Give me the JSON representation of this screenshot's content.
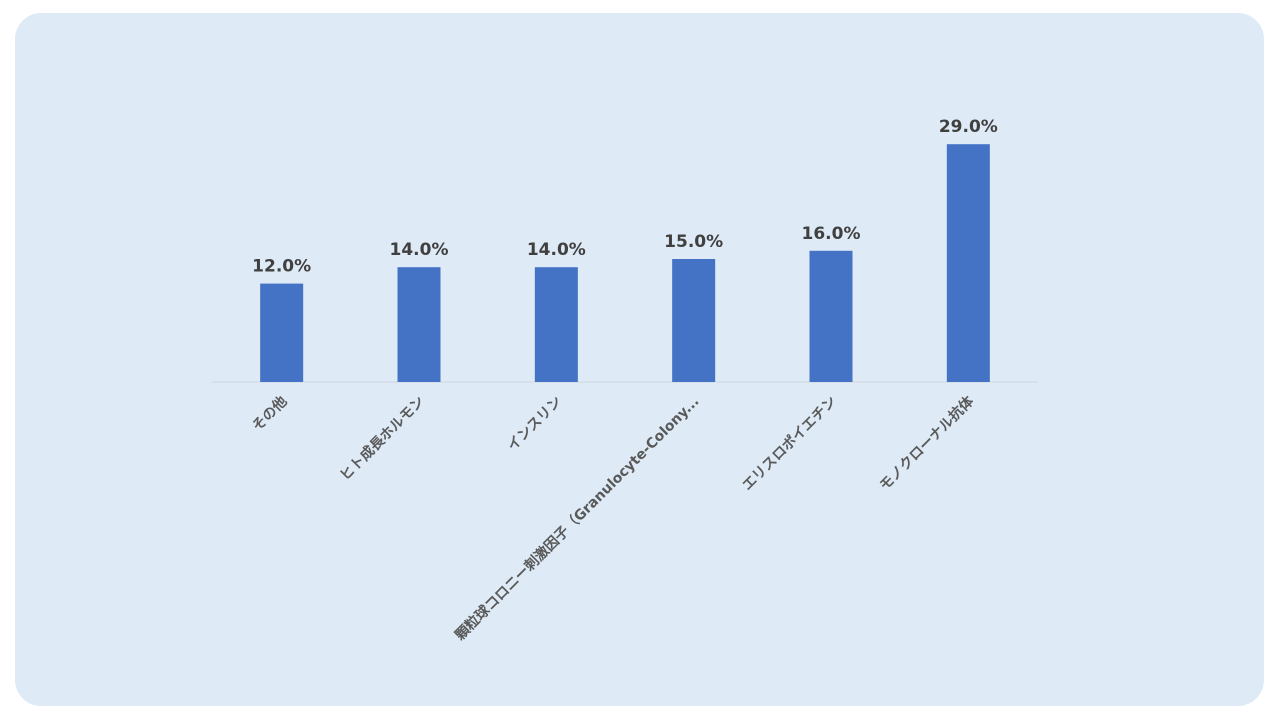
{
  "chart_data": {
    "type": "bar",
    "categories": [
      "その他",
      "ヒト成長ホルモン",
      "インスリン",
      "顆粒球コロニー刺激因子（Granulocyte-Colony...",
      "エリスロポイエチン",
      "モノクローナル抗体"
    ],
    "values": [
      12,
      14,
      14,
      15,
      16,
      29
    ],
    "value_labels": [
      "12.0%",
      "14.0%",
      "14.0%",
      "15.0%",
      "16.0%",
      "29.0%"
    ],
    "color": "#4472c4"
  }
}
